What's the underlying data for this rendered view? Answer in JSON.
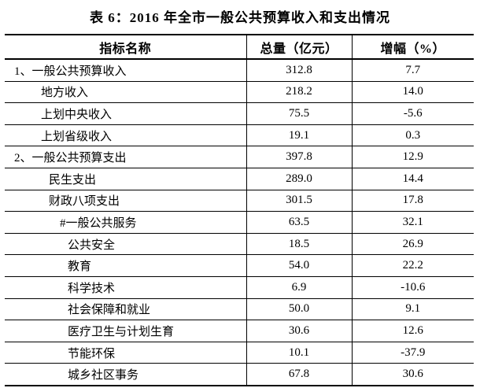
{
  "title": "表 6：2016 年全市一般公共预算收入和支出情况",
  "table": {
    "columns": [
      "指标名称",
      "总量（亿元）",
      "增幅（%）"
    ],
    "rows": [
      {
        "name": "1、一般公共预算收入",
        "total": "312.8",
        "growth": "7.7"
      },
      {
        "name": "地方收入",
        "total": "218.2",
        "growth": "14.0"
      },
      {
        "name": "上划中央收入",
        "total": "75.5",
        "growth": "-5.6"
      },
      {
        "name": "上划省级收入",
        "total": "19.1",
        "growth": "0.3"
      },
      {
        "name": "2、一般公共预算支出",
        "total": "397.8",
        "growth": "12.9"
      },
      {
        "name": "民生支出",
        "total": "289.0",
        "growth": "14.4"
      },
      {
        "name": "财政八项支出",
        "total": "301.5",
        "growth": "17.8"
      },
      {
        "name": "#一般公共服务",
        "total": "63.5",
        "growth": "32.1"
      },
      {
        "name": "公共安全",
        "total": "18.5",
        "growth": "26.9"
      },
      {
        "name": "教育",
        "total": "54.0",
        "growth": "22.2"
      },
      {
        "name": "科学技术",
        "total": "6.9",
        "growth": "-10.6"
      },
      {
        "name": "社会保障和就业",
        "total": "50.0",
        "growth": "9.1"
      },
      {
        "name": "医疗卫生与计划生育",
        "total": "30.6",
        "growth": "12.6"
      },
      {
        "name": "节能环保",
        "total": "10.1",
        "growth": "-37.9"
      },
      {
        "name": "城乡社区事务",
        "total": "67.8",
        "growth": "30.6"
      }
    ]
  }
}
